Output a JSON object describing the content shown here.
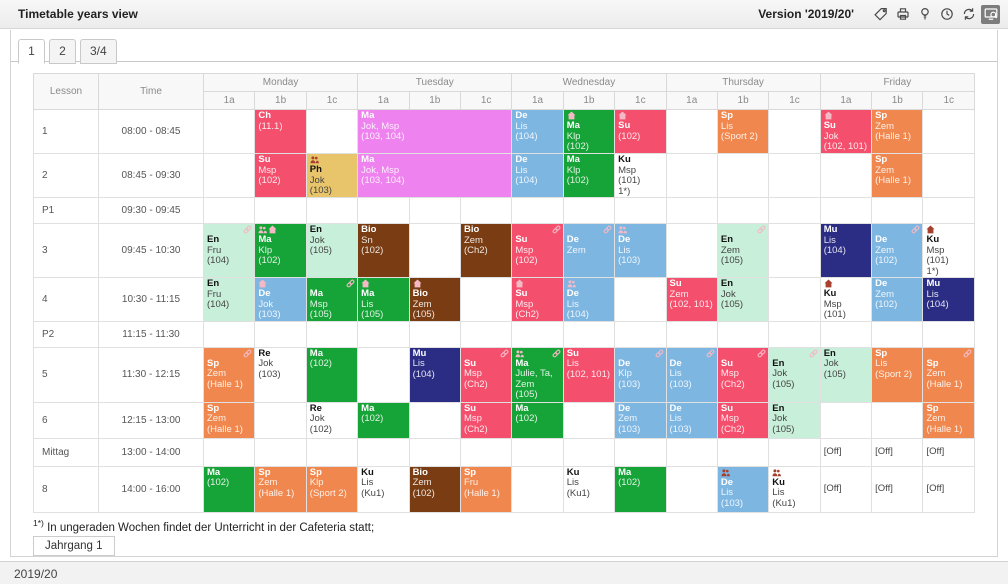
{
  "header": {
    "title": "Timetable years view",
    "version_label": "Version '2019/20'",
    "toolbar_icons": [
      {
        "name": "tag-icon",
        "active": false
      },
      {
        "name": "print-icon",
        "active": false
      },
      {
        "name": "lightbulb-icon",
        "active": false
      },
      {
        "name": "clock-icon",
        "active": false
      },
      {
        "name": "refresh-icon",
        "active": false
      },
      {
        "name": "screen-search-icon",
        "active": true
      }
    ]
  },
  "tabs": [
    {
      "label": "1",
      "active": true
    },
    {
      "label": "2",
      "active": false
    },
    {
      "label": "3/4",
      "active": false
    }
  ],
  "timetable": {
    "corner_headers": [
      "Lesson",
      "Time"
    ],
    "days": [
      "Monday",
      "Tuesday",
      "Wednesday",
      "Thursday",
      "Friday"
    ],
    "class_columns": [
      "1a",
      "1b",
      "1c"
    ],
    "palette": {
      "pink": "#f4506e",
      "violet": "#ee82ee",
      "blue": "#7eb6e2",
      "navy": "#2b2d84",
      "green": "#16a337",
      "mint": "#c8efd9",
      "brown": "#7a3d13",
      "orange": "#f0874e",
      "gold": "#e8c56a",
      "white": "#ffffff"
    },
    "dark_text_bgs": [
      "mint",
      "gold",
      "white"
    ],
    "rows": [
      {
        "lesson": "1",
        "time": "08:00 - 08:45",
        "h": 44,
        "cells": [
          {
            "col": 1,
            "lines": [
              "Ch",
              "(11.1)"
            ],
            "bg": "pink"
          },
          {
            "col": 3,
            "span": 3,
            "lines": [
              "Ma",
              "Jok, Msp",
              "(103, 104)"
            ],
            "bg": "violet"
          },
          {
            "col": 6,
            "lines": [
              "De",
              "Lis",
              "(104)"
            ],
            "bg": "blue"
          },
          {
            "col": 7,
            "lines": [
              "Ma",
              "Klp",
              "(102)"
            ],
            "bg": "green",
            "icons_left": [
              "home-icon"
            ]
          },
          {
            "col": 8,
            "lines": [
              "Su",
              "(102)"
            ],
            "bg": "pink",
            "icons_left": [
              "home-icon"
            ]
          },
          {
            "col": 10,
            "lines": [
              "Sp",
              "Lis",
              "(Sport 2)"
            ],
            "bg": "orange"
          },
          {
            "col": 12,
            "lines": [
              "Su",
              "Jok",
              "(102, 101)"
            ],
            "bg": "pink",
            "icons_left": [
              "home-icon"
            ]
          },
          {
            "col": 13,
            "lines": [
              "Sp",
              "Zem",
              "(Halle 1)"
            ],
            "bg": "orange"
          }
        ]
      },
      {
        "lesson": "2",
        "time": "08:45 - 09:30",
        "h": 44,
        "cells": [
          {
            "col": 1,
            "lines": [
              "Su",
              "Msp",
              "(102)"
            ],
            "bg": "pink"
          },
          {
            "col": 2,
            "lines": [
              "Ph",
              "Jok",
              "(103)"
            ],
            "bg": "gold",
            "icons_left": [
              "group-icon"
            ],
            "icon_color": "dark"
          },
          {
            "col": 3,
            "span": 3,
            "lines": [
              "Ma",
              "Jok, Msp",
              "(103, 104)"
            ],
            "bg": "violet"
          },
          {
            "col": 6,
            "lines": [
              "De",
              "Lis",
              "(104)"
            ],
            "bg": "blue"
          },
          {
            "col": 7,
            "lines": [
              "Ma",
              "Klp",
              "(102)"
            ],
            "bg": "green"
          },
          {
            "col": 8,
            "lines": [
              "Ku",
              "Msp",
              "(101)",
              "1*)"
            ],
            "bg": "white"
          },
          {
            "col": 13,
            "lines": [
              "Sp",
              "Zem",
              "(Halle 1)"
            ],
            "bg": "orange"
          }
        ]
      },
      {
        "lesson": "P1",
        "time": "09:30 - 09:45",
        "h": 26,
        "cells": []
      },
      {
        "lesson": "3",
        "time": "09:45 - 10:30",
        "h": 54,
        "cells": [
          {
            "col": 0,
            "lines": [
              "En",
              "Fru",
              "(104)"
            ],
            "bg": "mint",
            "icon_right": "link-icon"
          },
          {
            "col": 1,
            "lines": [
              "Ma",
              "Klp",
              "(102)"
            ],
            "bg": "green",
            "icons_left": [
              "group-icon",
              "home-icon"
            ]
          },
          {
            "col": 2,
            "lines": [
              "En",
              "Jok",
              "(105)"
            ],
            "bg": "mint"
          },
          {
            "col": 3,
            "lines": [
              "Bio",
              "Sn",
              "(102)"
            ],
            "bg": "brown"
          },
          {
            "col": 5,
            "lines": [
              "Bio",
              "Zem",
              "(Ch2)"
            ],
            "bg": "brown"
          },
          {
            "col": 6,
            "lines": [
              "Su",
              "Msp",
              "(102)"
            ],
            "bg": "pink",
            "icon_right": "link-icon"
          },
          {
            "col": 7,
            "lines": [
              "De",
              "Zem"
            ],
            "bg": "blue",
            "icon_right": "link-icon"
          },
          {
            "col": 8,
            "lines": [
              "De",
              "Lis",
              "(103)"
            ],
            "bg": "blue",
            "icons_left": [
              "group-icon"
            ]
          },
          {
            "col": 10,
            "lines": [
              "En",
              "Zem",
              "(105)"
            ],
            "bg": "mint",
            "icon_right": "link-icon"
          },
          {
            "col": 12,
            "lines": [
              "Mu",
              "Lis",
              "(104)"
            ],
            "bg": "navy"
          },
          {
            "col": 13,
            "lines": [
              "De",
              "Zem",
              "(102)"
            ],
            "bg": "blue",
            "icon_right": "link-icon"
          },
          {
            "col": 14,
            "lines": [
              "Ku",
              "Msp",
              "(101)",
              "1*)"
            ],
            "bg": "white",
            "icons_left": [
              "home-icon"
            ],
            "icon_color": "dark"
          }
        ]
      },
      {
        "lesson": "4",
        "time": "10:30 - 11:15",
        "h": 41,
        "cells": [
          {
            "col": 0,
            "lines": [
              "En",
              "Fru",
              "(104)"
            ],
            "bg": "mint"
          },
          {
            "col": 1,
            "lines": [
              "De",
              "Jok",
              "(103)"
            ],
            "bg": "blue",
            "icons_left": [
              "home-icon"
            ]
          },
          {
            "col": 2,
            "lines": [
              "Ma",
              "Msp",
              "(105)"
            ],
            "bg": "green",
            "icon_right": "link-icon"
          },
          {
            "col": 3,
            "lines": [
              "Ma",
              "Lis",
              "(105)"
            ],
            "bg": "green",
            "icons_left": [
              "home-icon"
            ]
          },
          {
            "col": 4,
            "lines": [
              "Bio",
              "Zem",
              "(105)"
            ],
            "bg": "brown",
            "icons_left": [
              "home-icon"
            ]
          },
          {
            "col": 6,
            "lines": [
              "Su",
              "Msp",
              "(Ch2)"
            ],
            "bg": "pink",
            "icons_left": [
              "home-icon"
            ]
          },
          {
            "col": 7,
            "lines": [
              "De",
              "Lis",
              "(104)"
            ],
            "bg": "blue",
            "icons_left": [
              "group-icon"
            ]
          },
          {
            "col": 9,
            "lines": [
              "Su",
              "Zem",
              "(102, 101)"
            ],
            "bg": "pink"
          },
          {
            "col": 10,
            "lines": [
              "En",
              "Jok",
              "(105)"
            ],
            "bg": "mint"
          },
          {
            "col": 12,
            "lines": [
              "Ku",
              "Msp",
              "(101)"
            ],
            "bg": "white",
            "icons_left": [
              "home-icon"
            ],
            "icon_color": "dark"
          },
          {
            "col": 13,
            "lines": [
              "De",
              "Zem",
              "(102)"
            ],
            "bg": "blue"
          },
          {
            "col": 14,
            "lines": [
              "Mu",
              "Lis",
              "(104)"
            ],
            "bg": "navy"
          }
        ]
      },
      {
        "lesson": "P2",
        "time": "11:15 - 11:30",
        "h": 26,
        "cells": []
      },
      {
        "lesson": "5",
        "time": "11:30 - 12:15",
        "h": 55,
        "cells": [
          {
            "col": 0,
            "lines": [
              "Sp",
              "Zem",
              "(Halle 1)"
            ],
            "bg": "orange",
            "icon_right": "link-icon"
          },
          {
            "col": 1,
            "lines": [
              "Re",
              "Jok",
              "(103)"
            ],
            "bg": "white"
          },
          {
            "col": 2,
            "lines": [
              "Ma",
              "(102)"
            ],
            "bg": "green"
          },
          {
            "col": 4,
            "lines": [
              "Mu",
              "Lis",
              "(104)"
            ],
            "bg": "navy"
          },
          {
            "col": 5,
            "lines": [
              "Su",
              "Msp",
              "(Ch2)"
            ],
            "bg": "pink",
            "icon_right": "link-icon"
          },
          {
            "col": 6,
            "lines": [
              "Ma",
              "Julie, Ta,",
              "Zem",
              "(105)"
            ],
            "bg": "green",
            "icons_left": [
              "group-icon"
            ],
            "icon_right": "link-icon"
          },
          {
            "col": 7,
            "lines": [
              "Su",
              "Lis",
              "(102, 101)"
            ],
            "bg": "pink"
          },
          {
            "col": 8,
            "lines": [
              "De",
              "Klp",
              "(103)"
            ],
            "bg": "blue",
            "icon_right": "link-icon"
          },
          {
            "col": 9,
            "lines": [
              "De",
              "Lis",
              "(103)"
            ],
            "bg": "blue",
            "icon_right": "link-icon"
          },
          {
            "col": 10,
            "lines": [
              "Su",
              "Msp",
              "(Ch2)"
            ],
            "bg": "pink",
            "icon_right": "link-icon"
          },
          {
            "col": 11,
            "lines": [
              "En",
              "Jok",
              "(105)"
            ],
            "bg": "mint",
            "icon_right": "link-icon"
          },
          {
            "col": 12,
            "lines": [
              "En",
              "Jok",
              "(105)"
            ],
            "bg": "mint"
          },
          {
            "col": 13,
            "lines": [
              "Sp",
              "Lis",
              "(Sport 2)"
            ],
            "bg": "orange"
          },
          {
            "col": 14,
            "lines": [
              "Sp",
              "Zem",
              "(Halle 1)"
            ],
            "bg": "orange",
            "icon_right": "link-icon"
          }
        ]
      },
      {
        "lesson": "6",
        "time": "12:15 - 13:00",
        "h": 36,
        "cells": [
          {
            "col": 0,
            "lines": [
              "Sp",
              "Zem",
              "(Halle 1)"
            ],
            "bg": "orange"
          },
          {
            "col": 2,
            "lines": [
              "Re",
              "Jok",
              "(102)"
            ],
            "bg": "white"
          },
          {
            "col": 3,
            "lines": [
              "Ma",
              "(102)"
            ],
            "bg": "green"
          },
          {
            "col": 5,
            "lines": [
              "Su",
              "Msp",
              "(Ch2)"
            ],
            "bg": "pink"
          },
          {
            "col": 6,
            "lines": [
              "Ma",
              "(102)"
            ],
            "bg": "green"
          },
          {
            "col": 8,
            "lines": [
              "De",
              "Zem",
              "(103)"
            ],
            "bg": "blue"
          },
          {
            "col": 9,
            "lines": [
              "De",
              "Lis",
              "(103)"
            ],
            "bg": "blue"
          },
          {
            "col": 10,
            "lines": [
              "Su",
              "Msp",
              "(Ch2)"
            ],
            "bg": "pink"
          },
          {
            "col": 11,
            "lines": [
              "En",
              "Jok",
              "(105)"
            ],
            "bg": "mint"
          },
          {
            "col": 14,
            "lines": [
              "Sp",
              "Zem",
              "(Halle 1)"
            ],
            "bg": "orange"
          }
        ]
      },
      {
        "lesson": "Mittag",
        "time": "13:00 - 14:00",
        "h": 28,
        "cells": [
          {
            "col": 12,
            "lines": [
              "[Off]"
            ],
            "bg": "white",
            "off": true
          },
          {
            "col": 13,
            "lines": [
              "[Off]"
            ],
            "bg": "white",
            "off": true
          },
          {
            "col": 14,
            "lines": [
              "[Off]"
            ],
            "bg": "white",
            "off": true
          }
        ]
      },
      {
        "lesson": "8",
        "time": "14:00 - 16:00",
        "h": 46,
        "cells": [
          {
            "col": 0,
            "lines": [
              "Ma",
              "(102)"
            ],
            "bg": "green"
          },
          {
            "col": 1,
            "lines": [
              "Sp",
              "Zem",
              "(Halle 1)"
            ],
            "bg": "orange"
          },
          {
            "col": 2,
            "lines": [
              "Sp",
              "Klp",
              "(Sport 2)"
            ],
            "bg": "orange"
          },
          {
            "col": 3,
            "lines": [
              "Ku",
              "Lis",
              "(Ku1)"
            ],
            "bg": "white"
          },
          {
            "col": 4,
            "lines": [
              "Bio",
              "Zem",
              "(102)"
            ],
            "bg": "brown"
          },
          {
            "col": 5,
            "lines": [
              "Sp",
              "Fru",
              "(Halle 1)"
            ],
            "bg": "orange"
          },
          {
            "col": 7,
            "lines": [
              "Ku",
              "Lis",
              "(Ku1)"
            ],
            "bg": "white"
          },
          {
            "col": 8,
            "lines": [
              "Ma",
              "(102)"
            ],
            "bg": "green"
          },
          {
            "col": 10,
            "lines": [
              "De",
              "Lis",
              "(103)"
            ],
            "bg": "blue",
            "icons_left": [
              "group-icon"
            ],
            "icon_color": "dark"
          },
          {
            "col": 11,
            "lines": [
              "Ku",
              "Lis",
              "(Ku1)"
            ],
            "bg": "white",
            "icons_left": [
              "group-icon"
            ],
            "icon_color": "dark"
          },
          {
            "col": 12,
            "lines": [
              "[Off]"
            ],
            "bg": "white",
            "off": true
          },
          {
            "col": 13,
            "lines": [
              "[Off]"
            ],
            "bg": "white",
            "off": true
          },
          {
            "col": 14,
            "lines": [
              "[Off]"
            ],
            "bg": "white",
            "off": true
          }
        ]
      }
    ]
  },
  "footnote": {
    "marker": "1*)",
    "text": "In ungeraden Wochen findet der Unterricht in der Cafeteria statt;"
  },
  "class_selector_label": "Jahrgang 1",
  "footer": {
    "school_year": "2019/20"
  }
}
